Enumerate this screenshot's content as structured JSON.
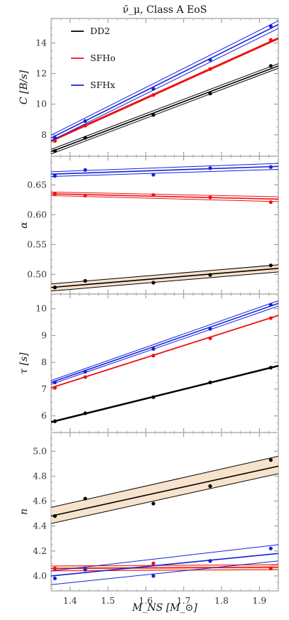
{
  "figure": {
    "title": "ν̄_μ, Class A EoS",
    "xlabel": "M_NS [M_⊙]"
  },
  "colors": {
    "DD2": "#000000",
    "SFHo": "#ee1111",
    "SFHx": "#1122dd",
    "band_DD2": "#f6dfc6"
  },
  "legend": [
    {
      "name": "DD2",
      "color": "#000000"
    },
    {
      "name": "SFHo",
      "color": "#ee1111"
    },
    {
      "name": "SFHx",
      "color": "#1122dd"
    }
  ],
  "chart_data": [
    {
      "type": "line",
      "title": "ν̄_μ, Class A EoS",
      "ylabel": "C [B/s]",
      "xlim": [
        1.35,
        1.95
      ],
      "ylim": [
        6.6,
        15.6
      ],
      "yticks": [
        8,
        10,
        12,
        14
      ],
      "ytick_labels": [
        "8",
        "10",
        "12",
        "14"
      ],
      "series": [
        {
          "name": "DD2",
          "color": "#000000",
          "points": [
            [
              1.36,
              6.95
            ],
            [
              1.44,
              7.8
            ],
            [
              1.62,
              9.3
            ],
            [
              1.77,
              10.7
            ],
            [
              1.93,
              12.5
            ]
          ],
          "fit": [
            6.9,
            12.5
          ],
          "band_lo": [
            6.75,
            12.35
          ],
          "band_hi": [
            7.05,
            12.65
          ]
        },
        {
          "name": "SFHo",
          "color": "#ee1111",
          "points": [
            [
              1.36,
              7.6
            ],
            [
              1.44,
              8.6
            ],
            [
              1.62,
              10.6
            ],
            [
              1.77,
              12.3
            ],
            [
              1.93,
              14.2
            ]
          ],
          "fit": [
            7.6,
            14.3
          ],
          "band_lo": [
            7.55,
            14.25
          ],
          "band_hi": [
            7.65,
            14.35
          ]
        },
        {
          "name": "SFHx",
          "color": "#1122dd",
          "points": [
            [
              1.36,
              7.8
            ],
            [
              1.44,
              8.9
            ],
            [
              1.62,
              11.0
            ],
            [
              1.77,
              12.9
            ],
            [
              1.93,
              15.1
            ]
          ],
          "fit": [
            7.8,
            15.2
          ],
          "band_lo": [
            7.62,
            14.95
          ],
          "band_hi": [
            7.98,
            15.45
          ]
        }
      ]
    },
    {
      "type": "line",
      "ylabel": "α",
      "xlim": [
        1.35,
        1.95
      ],
      "ylim": [
        0.467,
        0.698
      ],
      "yticks": [
        0.5,
        0.55,
        0.6,
        0.65
      ],
      "ytick_labels": [
        "0.50",
        "0.55",
        "0.60",
        "0.65"
      ],
      "series": [
        {
          "name": "DD2",
          "color": "#000000",
          "points": [
            [
              1.36,
              0.478
            ],
            [
              1.44,
              0.489
            ],
            [
              1.62,
              0.486
            ],
            [
              1.77,
              0.499
            ],
            [
              1.93,
              0.515
            ]
          ],
          "fit": [
            0.478,
            0.51
          ],
          "band_lo": [
            0.472,
            0.504
          ],
          "band_hi": [
            0.484,
            0.516
          ],
          "band_fill": "#f6dfc6"
        },
        {
          "name": "SFHo",
          "color": "#ee1111",
          "points": [
            [
              1.36,
              0.635
            ],
            [
              1.44,
              0.632
            ],
            [
              1.62,
              0.633
            ],
            [
              1.77,
              0.629
            ],
            [
              1.93,
              0.621
            ]
          ],
          "fit": [
            0.635,
            0.626
          ],
          "band_lo": [
            0.632,
            0.622
          ],
          "band_hi": [
            0.638,
            0.63
          ]
        },
        {
          "name": "SFHx",
          "color": "#1122dd",
          "points": [
            [
              1.36,
              0.665
            ],
            [
              1.44,
              0.675
            ],
            [
              1.62,
              0.667
            ],
            [
              1.77,
              0.678
            ],
            [
              1.93,
              0.68
            ]
          ],
          "fit": [
            0.668,
            0.681
          ],
          "band_lo": [
            0.664,
            0.676
          ],
          "band_hi": [
            0.672,
            0.686
          ]
        }
      ]
    },
    {
      "type": "line",
      "ylabel": "τ [s]",
      "xlim": [
        1.35,
        1.95
      ],
      "ylim": [
        5.38,
        10.55
      ],
      "yticks": [
        6,
        7,
        8,
        9,
        10
      ],
      "ytick_labels": [
        "6",
        "7",
        "8",
        "9",
        "10"
      ],
      "series": [
        {
          "name": "DD2",
          "color": "#000000",
          "points": [
            [
              1.36,
              5.8
            ],
            [
              1.44,
              6.1
            ],
            [
              1.62,
              6.7
            ],
            [
              1.77,
              7.25
            ],
            [
              1.93,
              7.8
            ]
          ],
          "fit": [
            5.77,
            7.87
          ],
          "band_lo": [
            5.75,
            7.85
          ],
          "band_hi": [
            5.79,
            7.89
          ]
        },
        {
          "name": "SFHo",
          "color": "#ee1111",
          "points": [
            [
              1.36,
              7.05
            ],
            [
              1.44,
              7.45
            ],
            [
              1.62,
              8.25
            ],
            [
              1.77,
              8.9
            ],
            [
              1.93,
              9.65
            ]
          ],
          "fit": [
            7.05,
            9.75
          ],
          "band_lo": [
            7.04,
            9.74
          ],
          "band_hi": [
            7.06,
            9.76
          ]
        },
        {
          "name": "SFHx",
          "color": "#1122dd",
          "points": [
            [
              1.36,
              7.25
            ],
            [
              1.44,
              7.65
            ],
            [
              1.62,
              8.5
            ],
            [
              1.77,
              9.25
            ],
            [
              1.93,
              10.15
            ]
          ],
          "fit": [
            7.25,
            10.2
          ],
          "band_lo": [
            7.18,
            10.1
          ],
          "band_hi": [
            7.32,
            10.3
          ]
        }
      ]
    },
    {
      "type": "line",
      "ylabel": "n",
      "xlim": [
        1.35,
        1.95
      ],
      "ylim": [
        3.88,
        5.15
      ],
      "yticks": [
        4.0,
        4.2,
        4.4,
        4.6,
        4.8,
        5.0
      ],
      "ytick_labels": [
        "4.0",
        "4.2",
        "4.4",
        "4.6",
        "4.8",
        "5.0"
      ],
      "series": [
        {
          "name": "DD2",
          "color": "#000000",
          "points": [
            [
              1.36,
              4.48
            ],
            [
              1.44,
              4.62
            ],
            [
              1.62,
              4.58
            ],
            [
              1.77,
              4.72
            ],
            [
              1.93,
              4.93
            ]
          ],
          "fit": [
            4.48,
            4.88
          ],
          "band_lo": [
            4.42,
            4.82
          ],
          "band_hi": [
            4.55,
            4.96
          ],
          "band_fill": "#f6dfc6"
        },
        {
          "name": "SFHo",
          "color": "#ee1111",
          "points": [
            [
              1.36,
              4.06
            ],
            [
              1.44,
              4.06
            ],
            [
              1.62,
              4.1
            ],
            [
              1.77,
              4.12
            ],
            [
              1.93,
              4.06
            ]
          ],
          "fit": [
            4.06,
            4.07
          ],
          "band_lo": [
            4.04,
            4.05
          ],
          "band_hi": [
            4.08,
            4.09
          ],
          "band_fill": "#f6dfc6"
        },
        {
          "name": "SFHx",
          "color": "#1122dd",
          "points": [
            [
              1.36,
              3.98
            ],
            [
              1.44,
              4.05
            ],
            [
              1.62,
              4.0
            ],
            [
              1.77,
              4.12
            ],
            [
              1.93,
              4.22
            ]
          ],
          "fit": [
            4.0,
            4.18
          ],
          "band_lo": [
            3.93,
            4.12
          ],
          "band_hi": [
            4.04,
            4.25
          ]
        }
      ]
    }
  ],
  "xaxis": {
    "xlim": [
      1.35,
      1.95
    ],
    "xticks": [
      1.4,
      1.5,
      1.6,
      1.7,
      1.8,
      1.9
    ],
    "xtick_labels": [
      "1.4",
      "1.5",
      "1.6",
      "1.7",
      "1.8",
      "1.9"
    ]
  }
}
